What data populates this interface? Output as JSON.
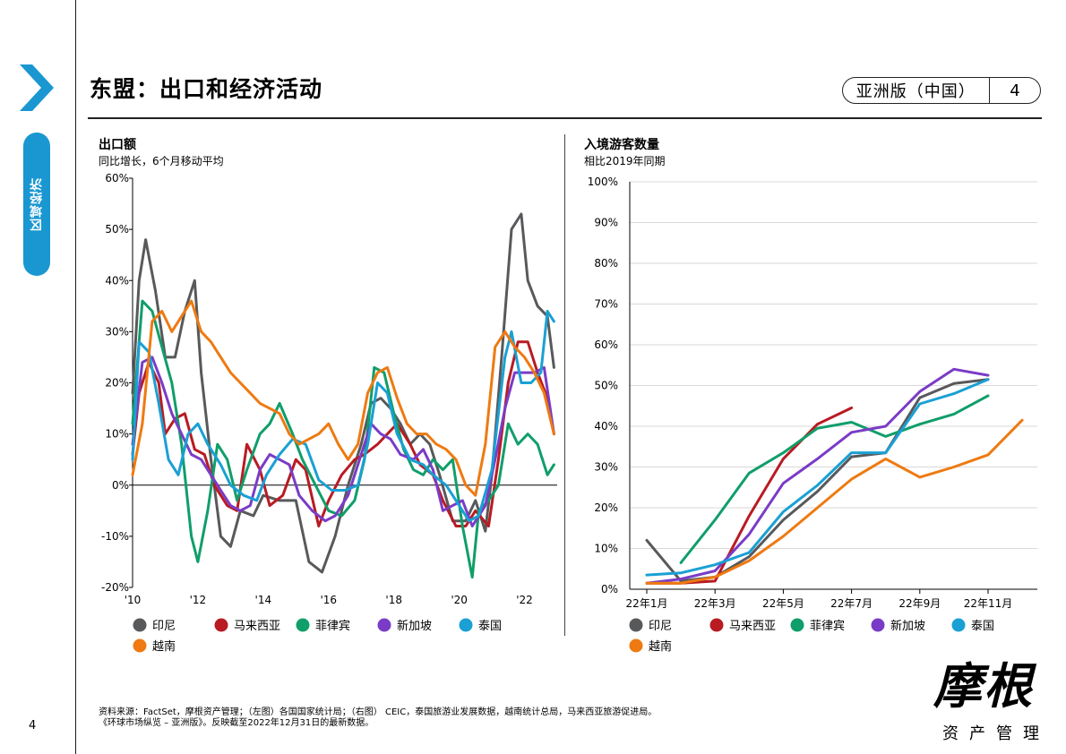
{
  "sidebar": {
    "label": "区域经济",
    "page_number": "4"
  },
  "header": {
    "title": "东盟：出口和经济活动",
    "edition_label": "亚洲版（中国）",
    "edition_number": "4"
  },
  "colors": {
    "brand": "#1a97d1",
    "indonesia": "#58595b",
    "malaysia": "#b81b22",
    "philippines": "#109e6a",
    "singapore": "#7a3cc6",
    "thailand": "#1aa0d4",
    "vietnam": "#ee7a11"
  },
  "chart_data": [
    {
      "type": "line",
      "title": "出口额",
      "subtitle": "同比增长，6个月移动平均",
      "xlim": [
        2010,
        2023
      ],
      "ylim": [
        -20,
        60
      ],
      "x_ticks": [
        "'10",
        "'12",
        "'14",
        "'16",
        "'18",
        "'20",
        "'22"
      ],
      "y_ticks": [
        "60%",
        "50%",
        "40%",
        "30%",
        "20%",
        "10%",
        "0%",
        "-10%",
        "-20%"
      ],
      "legend_position": "bottom",
      "series": [
        {
          "name": "印尼",
          "color": "#58595b",
          "x": [
            2010.0,
            2010.2,
            2010.4,
            2010.7,
            2011.0,
            2011.3,
            2011.6,
            2011.9,
            2012.1,
            2012.4,
            2012.7,
            2013.0,
            2013.3,
            2013.7,
            2014.0,
            2014.5,
            2015.0,
            2015.4,
            2015.8,
            2016.2,
            2016.6,
            2017.0,
            2017.3,
            2017.6,
            2017.9,
            2018.2,
            2018.5,
            2018.8,
            2019.1,
            2019.4,
            2019.8,
            2020.2,
            2020.5,
            2020.8,
            2021.0,
            2021.3,
            2021.6,
            2021.9,
            2022.1,
            2022.4,
            2022.7,
            2022.9
          ],
          "y": [
            18,
            40,
            48,
            38,
            25,
            25,
            34,
            40,
            22,
            5,
            -10,
            -12,
            -5,
            -6,
            -2,
            -3,
            -3,
            -15,
            -17,
            -10,
            0,
            8,
            16,
            17,
            15,
            12,
            8,
            10,
            8,
            2,
            -7,
            -7,
            -3,
            -9,
            2,
            25,
            50,
            53,
            40,
            35,
            33,
            23
          ]
        },
        {
          "name": "马来西亚",
          "color": "#b81b22",
          "x": [
            2010.0,
            2010.2,
            2010.5,
            2010.8,
            2011.0,
            2011.3,
            2011.6,
            2011.9,
            2012.2,
            2012.5,
            2012.9,
            2013.2,
            2013.5,
            2013.9,
            2014.2,
            2014.6,
            2015.0,
            2015.3,
            2015.7,
            2016.0,
            2016.4,
            2016.8,
            2017.1,
            2017.5,
            2017.8,
            2018.1,
            2018.5,
            2018.8,
            2019.2,
            2019.5,
            2019.9,
            2020.2,
            2020.5,
            2020.9,
            2021.2,
            2021.5,
            2021.8,
            2022.1,
            2022.4,
            2022.7,
            2022.9
          ],
          "y": [
            6,
            18,
            24,
            20,
            10,
            13,
            14,
            7,
            6,
            0,
            -4,
            -5,
            8,
            3,
            -4,
            -2,
            5,
            3,
            -8,
            -3,
            2,
            5,
            6,
            8,
            10,
            12,
            8,
            4,
            2,
            -3,
            -8,
            -8,
            -5,
            -8,
            5,
            20,
            28,
            28,
            22,
            17,
            10
          ]
        },
        {
          "name": "菲律宾",
          "color": "#109e6a",
          "x": [
            2010.0,
            2010.3,
            2010.6,
            2010.9,
            2011.2,
            2011.5,
            2011.8,
            2012.0,
            2012.3,
            2012.6,
            2012.9,
            2013.2,
            2013.5,
            2013.9,
            2014.2,
            2014.5,
            2014.9,
            2015.2,
            2015.6,
            2016.0,
            2016.4,
            2016.8,
            2017.1,
            2017.4,
            2017.7,
            2018.0,
            2018.3,
            2018.6,
            2018.9,
            2019.2,
            2019.5,
            2019.8,
            2020.1,
            2020.4,
            2020.6,
            2020.9,
            2021.2,
            2021.5,
            2021.8,
            2022.1,
            2022.4,
            2022.7,
            2022.9
          ],
          "y": [
            12,
            36,
            34,
            27,
            20,
            8,
            -10,
            -15,
            -5,
            8,
            5,
            -3,
            3,
            10,
            12,
            16,
            10,
            5,
            0,
            -5,
            -6,
            -3,
            5,
            23,
            22,
            14,
            7,
            3,
            2,
            5,
            3,
            5,
            -8,
            -18,
            -5,
            -3,
            0,
            12,
            8,
            10,
            8,
            2,
            4
          ]
        },
        {
          "name": "新加坡",
          "color": "#7a3cc6",
          "x": [
            2010.0,
            2010.3,
            2010.6,
            2010.9,
            2011.2,
            2011.5,
            2011.8,
            2012.1,
            2012.4,
            2012.7,
            2013.0,
            2013.3,
            2013.6,
            2013.9,
            2014.2,
            2014.5,
            2014.8,
            2015.1,
            2015.5,
            2015.9,
            2016.2,
            2016.6,
            2017.0,
            2017.3,
            2017.6,
            2017.9,
            2018.2,
            2018.6,
            2018.9,
            2019.2,
            2019.5,
            2019.8,
            2020.1,
            2020.4,
            2020.8,
            2021.1,
            2021.4,
            2021.7,
            2022.0,
            2022.3,
            2022.6,
            2022.9
          ],
          "y": [
            8,
            24,
            25,
            20,
            14,
            10,
            6,
            5,
            2,
            -1,
            -4,
            -5,
            -4,
            3,
            6,
            5,
            4,
            -2,
            -5,
            -7,
            -6,
            -2,
            6,
            12,
            10,
            9,
            6,
            5,
            7,
            3,
            -5,
            -4,
            -3,
            -8,
            -4,
            5,
            15,
            22,
            22,
            22,
            23,
            10
          ]
        },
        {
          "name": "泰国",
          "color": "#1aa0d4",
          "x": [
            2010.0,
            2010.2,
            2010.5,
            2010.8,
            2011.1,
            2011.4,
            2011.7,
            2012.0,
            2012.3,
            2012.7,
            2013.0,
            2013.4,
            2013.8,
            2014.1,
            2014.5,
            2014.9,
            2015.3,
            2015.7,
            2016.1,
            2016.5,
            2016.9,
            2017.2,
            2017.5,
            2017.8,
            2018.1,
            2018.5,
            2018.9,
            2019.2,
            2019.6,
            2019.9,
            2020.3,
            2020.6,
            2021.0,
            2021.4,
            2021.6,
            2021.9,
            2022.2,
            2022.5,
            2022.7,
            2022.9
          ],
          "y": [
            5,
            28,
            26,
            16,
            5,
            2,
            10,
            12,
            8,
            4,
            0,
            -2,
            -3,
            2,
            6,
            9,
            8,
            1,
            -1,
            -1,
            0,
            8,
            20,
            18,
            10,
            5,
            4,
            2,
            0,
            -3,
            -7,
            -6,
            3,
            25,
            30,
            20,
            20,
            22,
            34,
            32
          ]
        },
        {
          "name": "越南",
          "color": "#ee7a11",
          "x": [
            2010.0,
            2010.3,
            2010.6,
            2010.9,
            2011.2,
            2011.5,
            2011.8,
            2012.1,
            2012.4,
            2012.7,
            2013.0,
            2013.3,
            2013.6,
            2013.9,
            2014.2,
            2014.5,
            2014.8,
            2015.1,
            2015.4,
            2015.7,
            2016.0,
            2016.3,
            2016.6,
            2016.9,
            2017.2,
            2017.5,
            2017.8,
            2018.1,
            2018.4,
            2018.7,
            2019.0,
            2019.3,
            2019.6,
            2019.9,
            2020.2,
            2020.5,
            2020.8,
            2021.1,
            2021.4,
            2021.7,
            2022.0,
            2022.3,
            2022.6,
            2022.9
          ],
          "y": [
            2,
            12,
            32,
            34,
            30,
            33,
            36,
            30,
            28,
            25,
            22,
            20,
            18,
            16,
            15,
            14,
            10,
            8,
            9,
            10,
            12,
            8,
            5,
            8,
            18,
            22,
            23,
            17,
            12,
            10,
            10,
            8,
            7,
            5,
            0,
            -2,
            8,
            27,
            30,
            27,
            25,
            22,
            18,
            10
          ]
        }
      ]
    },
    {
      "type": "line",
      "title": "入境游客数量",
      "subtitle": "相比2019年同期",
      "categories": [
        "22年1月",
        "22年2月",
        "22年3月",
        "22年4月",
        "22年5月",
        "22年6月",
        "22年7月",
        "22年8月",
        "22年9月",
        "22年10月",
        "22年11月",
        "22年12月"
      ],
      "x_tick_labels": [
        "22年1月",
        "22年3月",
        "22年5月",
        "22年7月",
        "22年9月",
        "22年11月"
      ],
      "ylim": [
        0,
        100
      ],
      "y_ticks": [
        "100%",
        "90%",
        "80%",
        "70%",
        "60%",
        "50%",
        "40%",
        "30%",
        "20%",
        "10%",
        "0%"
      ],
      "legend_position": "bottom",
      "series": [
        {
          "name": "印尼",
          "color": "#58595b",
          "values": [
            12,
            2,
            3,
            8,
            17,
            24,
            32.5,
            33.5,
            47,
            50.5,
            51.5,
            null
          ]
        },
        {
          "name": "马来西亚",
          "color": "#b81b22",
          "values": [
            1.5,
            1.5,
            2,
            18,
            32,
            40.5,
            44.5,
            null,
            null,
            null,
            null,
            null
          ]
        },
        {
          "name": "菲律宾",
          "color": "#109e6a",
          "values": [
            null,
            6.5,
            17,
            28.5,
            33.5,
            39.5,
            41,
            37.5,
            40.5,
            43,
            47.5,
            null
          ]
        },
        {
          "name": "新加坡",
          "color": "#7a3cc6",
          "values": [
            1.5,
            2.5,
            4.5,
            13.5,
            26,
            32,
            38.5,
            40,
            48.5,
            54,
            52.5,
            null
          ]
        },
        {
          "name": "泰国",
          "color": "#1aa0d4",
          "values": [
            3.5,
            4,
            6,
            9,
            19,
            25.5,
            33.5,
            33.5,
            45.5,
            48,
            51.5,
            null
          ]
        },
        {
          "name": "越南",
          "color": "#ee7a11",
          "values": [
            1.5,
            1.5,
            3,
            7,
            13,
            20,
            27,
            32,
            27.5,
            30,
            33,
            41.5
          ]
        }
      ]
    }
  ],
  "source_lines": [
    "资料来源：FactSet，摩根资产管理；（左图）各国国家统计局；（右图） CEIC，泰国旅游业发展数据，越南统计总局，马来西亚旅游促进局。",
    "《环球市场纵览 – 亚洲版》。反映截至2022年12月31日的最新数据。"
  ],
  "logo": {
    "main": "摩根",
    "sub": "资产管理"
  }
}
